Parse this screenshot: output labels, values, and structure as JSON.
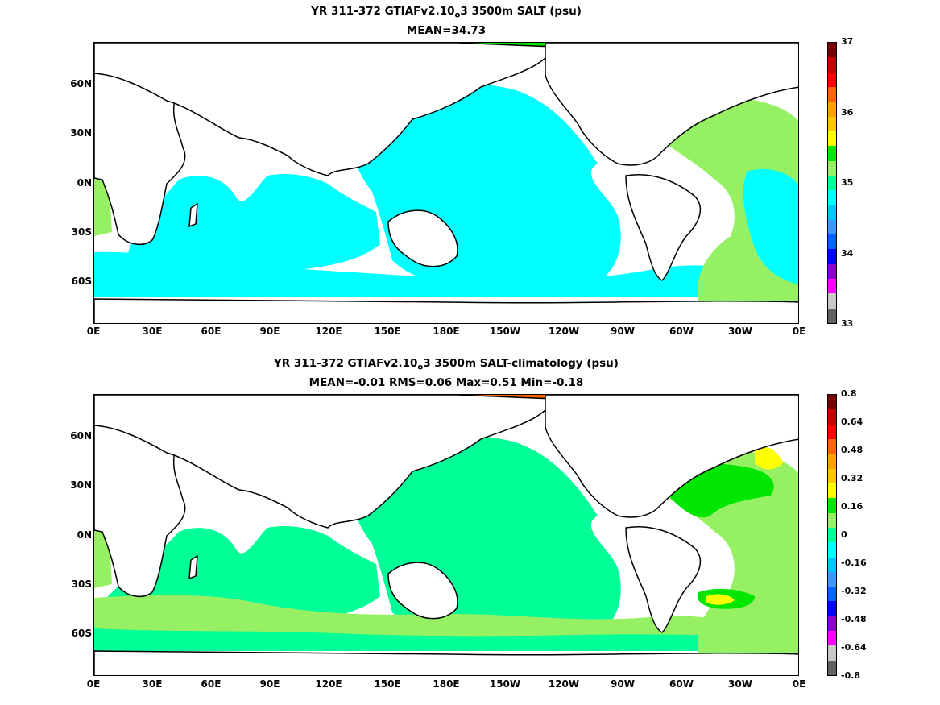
{
  "panels": [
    {
      "title_line1_pre": "YR 311-372 GTIAFv2.10",
      "title_line1_sub": "o",
      "title_line1_post": "3 3500m SALT (psu)",
      "title_line2": "MEAN=34.73",
      "colorbar": {
        "colors": [
          "#606060",
          "#c8c8c8",
          "#ff00ff",
          "#8c00d2",
          "#0000ff",
          "#0064ff",
          "#3c96ff",
          "#00c8ff",
          "#00ffff",
          "#00ff96",
          "#96f064",
          "#00e600",
          "#ffff00",
          "#ffc800",
          "#ffa000",
          "#ff6400",
          "#ff0000",
          "#c80000",
          "#780000"
        ],
        "labels": [
          "33",
          "34",
          "35",
          "36",
          "37"
        ]
      },
      "fill_colors": {
        "ocean": "#00ffff",
        "atlantic": "#96f064",
        "arctic": "#00e600",
        "high": "#ffff00"
      }
    },
    {
      "title_line1_pre": "YR 311-372 GTIAFv2.10",
      "title_line1_sub": "o",
      "title_line1_post": "3 3500m SALT-climatology (psu)",
      "title_line2": "MEAN=-0.01   RMS=0.06   Max=0.51   Min=-0.18",
      "colorbar": {
        "colors": [
          "#606060",
          "#c8c8c8",
          "#ff00ff",
          "#8c00d2",
          "#0000ff",
          "#0064ff",
          "#3c96ff",
          "#00c8ff",
          "#00ffff",
          "#00ff96",
          "#96f064",
          "#00e600",
          "#ffff00",
          "#ffc800",
          "#ffa000",
          "#ff6400",
          "#ff0000",
          "#c80000",
          "#780000"
        ],
        "labels": [
          "-0.8",
          "-0.64",
          "-0.48",
          "-0.32",
          "-0.16",
          "0",
          "0.16",
          "0.32",
          "0.48",
          "0.64",
          "0.8"
        ]
      },
      "fill_colors": {
        "ocean": "#00ff96",
        "southern": "#96f064",
        "atlantic": "#00e600",
        "high": "#ffff00",
        "arctic": "#ff6400"
      }
    }
  ],
  "axes": {
    "lon_labels": [
      "0E",
      "30E",
      "60E",
      "90E",
      "120E",
      "150E",
      "180E",
      "150W",
      "120W",
      "90W",
      "60W",
      "30W",
      "0E"
    ],
    "lat_labels": [
      "60N",
      "30N",
      "0N",
      "30S",
      "60S"
    ],
    "lat_values": [
      60,
      30,
      0,
      -30,
      -60
    ],
    "lat_range": [
      -80,
      90
    ],
    "lon_range": [
      0,
      360
    ]
  }
}
